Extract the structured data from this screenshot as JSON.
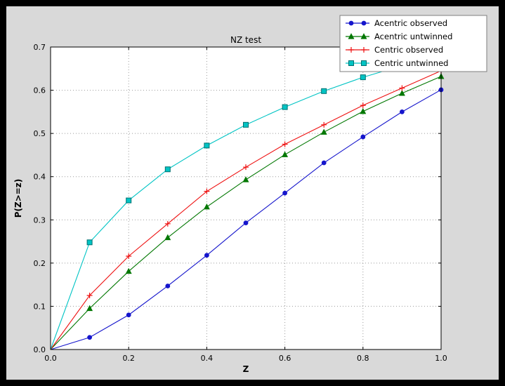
{
  "window": {
    "frame_color": "#000000",
    "figure_background": "#d9d9d9"
  },
  "chart_data": {
    "type": "line",
    "title": "NZ test",
    "xlabel": "Z",
    "ylabel": "P(Z>=z)",
    "xlim": [
      0.0,
      1.0
    ],
    "ylim": [
      0.0,
      0.7
    ],
    "xticks": [
      "0.0",
      "0.2",
      "0.4",
      "0.6",
      "0.8",
      "1.0"
    ],
    "yticks": [
      "0.0",
      "0.1",
      "0.2",
      "0.3",
      "0.4",
      "0.5",
      "0.6",
      "0.7"
    ],
    "grid": true,
    "grid_style": "dotted",
    "plot_background": "#ffffff",
    "legend_position": "upper-right",
    "x": [
      0.0,
      0.1,
      0.2,
      0.3,
      0.4,
      0.5,
      0.6,
      0.7,
      0.8,
      0.9,
      1.0
    ],
    "series": [
      {
        "name": "Acentric observed",
        "color": "#1515cc",
        "marker": "circle",
        "values": [
          0.0,
          0.028,
          0.08,
          0.147,
          0.218,
          0.293,
          0.362,
          0.432,
          0.492,
          0.55,
          0.601
        ]
      },
      {
        "name": "Acentric untwinned",
        "color": "#007700",
        "marker": "triangle",
        "values": [
          0.0,
          0.095,
          0.181,
          0.259,
          0.33,
          0.393,
          0.451,
          0.503,
          0.551,
          0.593,
          0.632
        ]
      },
      {
        "name": "Centric observed",
        "color": "#ee1111",
        "marker": "plus",
        "values": [
          0.0,
          0.125,
          0.216,
          0.291,
          0.366,
          0.422,
          0.475,
          0.52,
          0.565,
          0.605,
          0.645
        ]
      },
      {
        "name": "Centric untwinned",
        "color": "#00c4c4",
        "marker": "square",
        "marker_edge": "#007070",
        "values": [
          0.0,
          0.248,
          0.345,
          0.417,
          0.472,
          0.52,
          0.561,
          0.598,
          0.63,
          0.657,
          0.683
        ]
      }
    ]
  }
}
